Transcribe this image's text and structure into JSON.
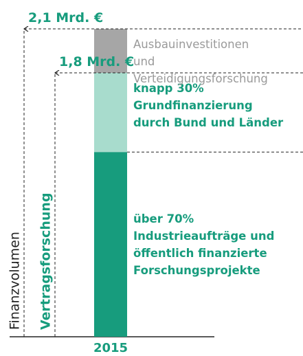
{
  "chart_data": {
    "type": "stacked_bar",
    "categories": [
      "2015"
    ],
    "series": [
      {
        "name": "über 70%\nIndustrieaufträge und\nöffentlich finanzierte\nForschungsprojekte",
        "color": "#179c7d",
        "text_color": "#179c7d",
        "bold": true,
        "values": [
          1.26
        ]
      },
      {
        "name": "knapp 30%\nGrundfinanzierung\ndurch Bund und Länder",
        "color": "#a8dccd",
        "text_color": "#179c7d",
        "bold": true,
        "values": [
          0.54
        ]
      },
      {
        "name": "Ausbauinvestitionen\nund\nVerteidigungsforschung",
        "color": "#a6a6a6",
        "text_color": "#9a9a9a",
        "bold": false,
        "values": [
          0.3
        ]
      }
    ],
    "totals": [
      {
        "value": 2.1,
        "label": "2,1 Mrd. €",
        "axis_label": "Finanzvolumen",
        "color": "#222222"
      },
      {
        "value": 1.8,
        "label": "1,8 Mrd. €",
        "axis_label": "Vertragsforschung",
        "color": "#179c7d"
      }
    ]
  }
}
